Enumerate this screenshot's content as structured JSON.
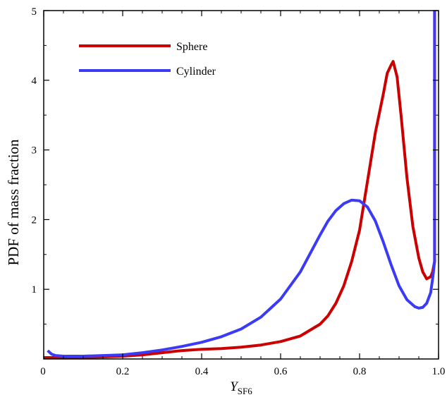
{
  "chart_data": {
    "type": "line",
    "title": "",
    "xlabel": {
      "main": "Y",
      "sub": "SF6"
    },
    "ylabel": "PDF of mass fraction",
    "xlim": [
      0,
      1
    ],
    "ylim": [
      0,
      5
    ],
    "xticks": [
      0,
      0.2,
      0.4,
      0.6,
      0.8,
      1
    ],
    "xtick_labels": [
      "0",
      "0.2",
      "0.4",
      "0.6",
      "0.8",
      "1.0"
    ],
    "yticks": [
      1,
      2,
      3,
      4,
      5
    ],
    "ytick_labels": [
      "1",
      "2",
      "3",
      "4",
      "5"
    ],
    "grid": false,
    "legend_position": "top-left",
    "series": [
      {
        "name": "Sphere",
        "color": "#cc0000",
        "x": [
          0.0,
          0.05,
          0.1,
          0.15,
          0.2,
          0.25,
          0.3,
          0.35,
          0.4,
          0.45,
          0.5,
          0.55,
          0.6,
          0.65,
          0.7,
          0.72,
          0.74,
          0.76,
          0.78,
          0.8,
          0.82,
          0.84,
          0.86,
          0.87,
          0.88,
          0.885,
          0.895,
          0.905,
          0.92,
          0.935,
          0.95,
          0.96,
          0.97,
          0.98,
          0.985,
          0.99,
          0.99
        ],
        "y": [
          0.02,
          0.02,
          0.02,
          0.03,
          0.04,
          0.06,
          0.09,
          0.12,
          0.14,
          0.15,
          0.17,
          0.2,
          0.25,
          0.33,
          0.5,
          0.62,
          0.8,
          1.05,
          1.4,
          1.85,
          2.55,
          3.25,
          3.8,
          4.1,
          4.22,
          4.27,
          4.05,
          3.5,
          2.6,
          1.9,
          1.45,
          1.25,
          1.15,
          1.18,
          1.25,
          1.4,
          5.0
        ]
      },
      {
        "name": "Cylinder",
        "color": "#3b3bf5",
        "x": [
          0.01,
          0.02,
          0.03,
          0.05,
          0.1,
          0.15,
          0.2,
          0.25,
          0.3,
          0.35,
          0.4,
          0.45,
          0.5,
          0.55,
          0.6,
          0.65,
          0.7,
          0.72,
          0.74,
          0.76,
          0.78,
          0.8,
          0.82,
          0.84,
          0.86,
          0.88,
          0.9,
          0.92,
          0.94,
          0.95,
          0.96,
          0.97,
          0.98,
          0.985,
          0.99,
          0.99
        ],
        "y": [
          0.12,
          0.07,
          0.05,
          0.04,
          0.04,
          0.05,
          0.06,
          0.09,
          0.13,
          0.18,
          0.24,
          0.32,
          0.43,
          0.6,
          0.86,
          1.25,
          1.78,
          1.98,
          2.13,
          2.23,
          2.28,
          2.27,
          2.18,
          1.98,
          1.68,
          1.35,
          1.05,
          0.85,
          0.75,
          0.73,
          0.74,
          0.8,
          0.95,
          1.15,
          1.4,
          5.0
        ]
      }
    ]
  }
}
